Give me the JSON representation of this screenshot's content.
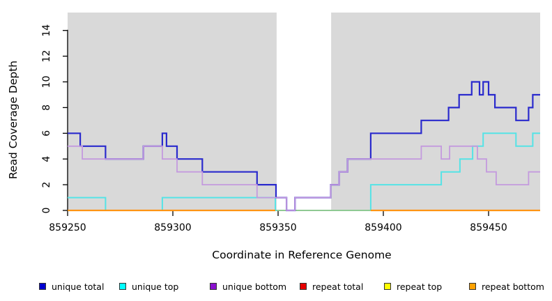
{
  "chart_data": {
    "type": "line",
    "subtype": "step-coverage-plot",
    "title": "",
    "xlabel": "Coordinate in Reference Genome",
    "ylabel": "Read Coverage Depth",
    "xlim": [
      859250,
      859474.5
    ],
    "ylim": [
      0,
      15.5
    ],
    "x_ticks": [
      859250,
      859300,
      859350,
      859400,
      859450
    ],
    "y_ticks": [
      0,
      2,
      4,
      6,
      8,
      10,
      12,
      14
    ],
    "grid": false,
    "plot_background": "#d9d9d9",
    "gap_region": {
      "x0": 859349.3,
      "x1": 859375.2,
      "color": "#ffffff"
    },
    "gap_zero_line": {
      "x0": 859349.3,
      "x1": 859394,
      "y": 0,
      "color": "#8fc993",
      "width": 2
    },
    "series": [
      {
        "name": "unique total",
        "color": "#2a2acd",
        "legend_color": "#0000d0",
        "width": 2.2,
        "segments": [
          [
            [
              859250,
              6
            ],
            [
              859256,
              5
            ],
            [
              859268,
              4
            ],
            [
              859286,
              5
            ],
            [
              859295,
              6
            ],
            [
              859297,
              5
            ],
            [
              859302,
              4
            ],
            [
              859314,
              3
            ],
            [
              859340,
              2
            ],
            [
              859349,
              1
            ],
            [
              859354,
              0
            ],
            [
              859358,
              1
            ],
            [
              859375,
              2
            ],
            [
              859379,
              3
            ],
            [
              859383,
              4
            ],
            [
              859394,
              6
            ],
            [
              859418,
              7
            ],
            [
              859431,
              8
            ],
            [
              859436,
              9
            ],
            [
              859442,
              10
            ],
            [
              859445.7,
              9
            ],
            [
              859447.4,
              10
            ],
            [
              859450,
              9
            ],
            [
              859453,
              8
            ],
            [
              859463,
              7
            ],
            [
              859469,
              8
            ],
            [
              859471,
              9
            ],
            [
              859474.5,
              9
            ]
          ]
        ]
      },
      {
        "name": "unique top",
        "color": "#55e3e6",
        "legend_color": "#00ffff",
        "width": 2,
        "segments": [
          [
            [
              859250,
              1
            ],
            [
              859268,
              0
            ],
            [
              859295,
              1
            ],
            [
              859348.7,
              0
            ],
            [
              859394,
              2
            ],
            [
              859427.5,
              3
            ],
            [
              859436.4,
              4
            ],
            [
              859442.4,
              5
            ],
            [
              859447.4,
              6
            ],
            [
              859463,
              5
            ],
            [
              859471,
              6
            ],
            [
              859474.5,
              6
            ]
          ]
        ]
      },
      {
        "name": "unique bottom",
        "color": "#c49ade",
        "legend_color": "#8a11cf",
        "width": 1.8,
        "segments": [
          [
            [
              859250,
              5
            ],
            [
              859257,
              4
            ],
            [
              859286,
              5
            ],
            [
              859295,
              4
            ],
            [
              859302,
              3
            ],
            [
              859314,
              2
            ],
            [
              859340,
              1
            ],
            [
              859354,
              0
            ],
            [
              859358,
              1
            ],
            [
              859375,
              2
            ],
            [
              859379,
              3
            ],
            [
              859383,
              4
            ],
            [
              859418,
              5
            ],
            [
              859427.5,
              4
            ],
            [
              859431.5,
              5
            ],
            [
              859444.7,
              4
            ],
            [
              859449,
              3
            ],
            [
              859453.6,
              2
            ],
            [
              859469,
              3
            ],
            [
              859474.5,
              3
            ]
          ]
        ]
      },
      {
        "name": "repeat total",
        "color": "#e60000",
        "legend_color": "#e60000",
        "width": 2,
        "segments": [
          [
            [
              859250,
              0
            ],
            [
              859348.7,
              0
            ]
          ],
          [
            [
              859394,
              0
            ],
            [
              859474.5,
              0
            ]
          ]
        ]
      },
      {
        "name": "repeat top",
        "color": "#ffff00",
        "legend_color": "#ffff00",
        "width": 2,
        "segments": [
          [
            [
              859250,
              0
            ],
            [
              859348.7,
              0
            ]
          ],
          [
            [
              859394,
              0
            ],
            [
              859474.5,
              0
            ]
          ]
        ]
      },
      {
        "name": "repeat bottom",
        "color": "#ff9414",
        "legend_color": "#ffa200",
        "width": 2.2,
        "segments": [
          [
            [
              859250,
              0
            ],
            [
              859348.7,
              0
            ]
          ],
          [
            [
              859394,
              0
            ],
            [
              859474.5,
              0
            ]
          ]
        ]
      }
    ],
    "legend": [
      {
        "label": "unique total",
        "color": "#0000d0"
      },
      {
        "label": "unique top",
        "color": "#00ffff"
      },
      {
        "label": "unique bottom",
        "color": "#8a11cf"
      },
      {
        "label": "repeat total",
        "color": "#e60000"
      },
      {
        "label": "repeat top",
        "color": "#ffff00"
      },
      {
        "label": "repeat bottom",
        "color": "#ffa200"
      }
    ],
    "legend_position": "bottom"
  }
}
